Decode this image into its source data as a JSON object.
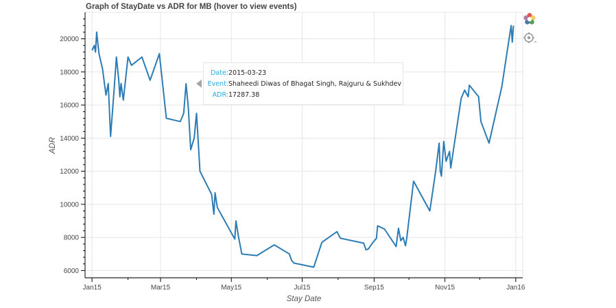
{
  "chart_data": {
    "type": "line",
    "title": "Graph of StayDate vs ADR for MB (hover to view events)",
    "xlabel": "Stay Date",
    "ylabel": "ADR",
    "x_axis_type": "datetime",
    "xlim": [
      "2014-12-26",
      "2016-01-07"
    ],
    "ylim": [
      5600,
      21600
    ],
    "x_ticks": [
      {
        "date": "2015-01-01",
        "label": "Jan15"
      },
      {
        "date": "2015-03-01",
        "label": "Mar15"
      },
      {
        "date": "2015-05-01",
        "label": "May15"
      },
      {
        "date": "2015-07-01",
        "label": "Jul15"
      },
      {
        "date": "2015-09-01",
        "label": "Sep15"
      },
      {
        "date": "2015-11-01",
        "label": "Nov15"
      },
      {
        "date": "2016-01-01",
        "label": "Jan16"
      }
    ],
    "y_ticks": [
      6000,
      8000,
      10000,
      12000,
      14000,
      16000,
      18000,
      20000
    ],
    "grid": true,
    "line_color": "#2b7bb4",
    "series": [
      {
        "points": [
          [
            "2015-01-01",
            19300
          ],
          [
            "2015-01-03",
            19600
          ],
          [
            "2015-01-04",
            19200
          ],
          [
            "2015-01-05",
            20400
          ],
          [
            "2015-01-07",
            19100
          ],
          [
            "2015-01-10",
            18200
          ],
          [
            "2015-01-13",
            16600
          ],
          [
            "2015-01-15",
            17300
          ],
          [
            "2015-01-17",
            14100
          ],
          [
            "2015-01-20",
            16900
          ],
          [
            "2015-01-22",
            18900
          ],
          [
            "2015-01-24",
            17500
          ],
          [
            "2015-01-25",
            16500
          ],
          [
            "2015-01-26",
            17300
          ],
          [
            "2015-01-28",
            16300
          ],
          [
            "2015-02-01",
            18900
          ],
          [
            "2015-02-04",
            18400
          ],
          [
            "2015-02-13",
            18900
          ],
          [
            "2015-02-20",
            17500
          ],
          [
            "2015-02-28",
            19100
          ],
          [
            "2015-03-06",
            15200
          ],
          [
            "2015-03-18",
            15000
          ],
          [
            "2015-03-21",
            15500
          ],
          [
            "2015-03-23",
            17287.38
          ],
          [
            "2015-03-25",
            15800
          ],
          [
            "2015-03-27",
            13300
          ],
          [
            "2015-03-30",
            14000
          ],
          [
            "2015-04-01",
            15500
          ],
          [
            "2015-04-04",
            12000
          ],
          [
            "2015-04-14",
            10600
          ],
          [
            "2015-04-16",
            9400
          ],
          [
            "2015-04-17",
            10700
          ],
          [
            "2015-04-19",
            9800
          ],
          [
            "2015-05-04",
            7900
          ],
          [
            "2015-05-05",
            9000
          ],
          [
            "2015-05-07",
            8100
          ],
          [
            "2015-05-10",
            7000
          ],
          [
            "2015-05-23",
            6900
          ],
          [
            "2015-06-07",
            7550
          ],
          [
            "2015-06-20",
            7000
          ],
          [
            "2015-06-22",
            6600
          ],
          [
            "2015-06-24",
            6450
          ],
          [
            "2015-07-11",
            6200
          ],
          [
            "2015-07-18",
            7700
          ],
          [
            "2015-07-31",
            8350
          ],
          [
            "2015-08-03",
            7950
          ],
          [
            "2015-08-23",
            7650
          ],
          [
            "2015-08-25",
            7250
          ],
          [
            "2015-08-27",
            7300
          ],
          [
            "2015-08-31",
            7700
          ],
          [
            "2015-09-03",
            7950
          ],
          [
            "2015-09-04",
            8700
          ],
          [
            "2015-09-10",
            8500
          ],
          [
            "2015-09-20",
            7450
          ],
          [
            "2015-09-22",
            8550
          ],
          [
            "2015-09-24",
            7800
          ],
          [
            "2015-09-26",
            8000
          ],
          [
            "2015-09-28",
            7500
          ],
          [
            "2015-09-29",
            7900
          ],
          [
            "2015-10-05",
            11400
          ],
          [
            "2015-10-19",
            9600
          ],
          [
            "2015-10-24",
            12000
          ],
          [
            "2015-10-27",
            13700
          ],
          [
            "2015-10-28",
            12000
          ],
          [
            "2015-10-29",
            11700
          ],
          [
            "2015-10-31",
            13800
          ],
          [
            "2015-11-02",
            12600
          ],
          [
            "2015-11-05",
            13200
          ],
          [
            "2015-11-06",
            12200
          ],
          [
            "2015-11-15",
            16400
          ],
          [
            "2015-11-18",
            16900
          ],
          [
            "2015-11-21",
            16500
          ],
          [
            "2015-11-22",
            17200
          ],
          [
            "2015-11-30",
            16500
          ],
          [
            "2015-12-02",
            15000
          ],
          [
            "2015-12-09",
            13700
          ],
          [
            "2015-12-20",
            17100
          ],
          [
            "2015-12-28",
            20800
          ],
          [
            "2015-12-29",
            19800
          ],
          [
            "2015-12-30",
            20800
          ]
        ]
      }
    ],
    "tooltip": {
      "date_key": "Date:",
      "date_value": "2015-03-23",
      "event_key": "Event:",
      "event_value": "Shaheedi Diwas of Bhagat Singh, Rajguru & Sukhdev",
      "adr_key": "ADR:",
      "adr_value": "17287.38",
      "anchor": [
        "2015-03-23",
        17287.38
      ]
    }
  },
  "toolbar": {
    "items": [
      {
        "icon": "bokeh-logo-icon"
      },
      {
        "icon": "hover-inspect-icon"
      }
    ]
  }
}
